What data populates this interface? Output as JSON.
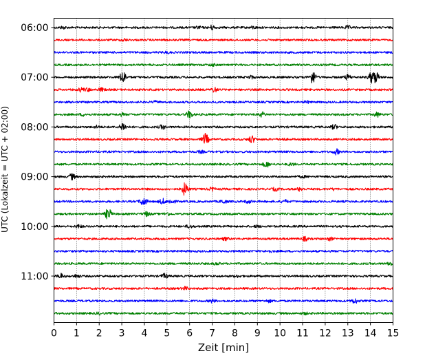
{
  "chart_data": {
    "type": "line",
    "title": "",
    "xlabel": "Zeit  [min]",
    "ylabel": "UTC (Lokalzeit = UTC + 02:00)",
    "xlim": [
      0,
      15
    ],
    "x_ticks": [
      "0",
      "1",
      "2",
      "3",
      "4",
      "5",
      "6",
      "7",
      "8",
      "9",
      "10",
      "11",
      "12",
      "13",
      "14",
      "15"
    ],
    "y_ticks": [
      "06:00",
      "07:00",
      "08:00",
      "09:00",
      "10:00",
      "11:00"
    ],
    "grid": "vertical dotted at each minute",
    "trace_colors": [
      "#000000",
      "#ff0000",
      "#0000ff",
      "#008000"
    ],
    "series": [
      {
        "start": "06:00",
        "events": [
          [
            0.4,
            1.5
          ],
          [
            6.4,
            1.5
          ],
          [
            7.0,
            3
          ],
          [
            8.8,
            1.5
          ],
          [
            13.0,
            2
          ]
        ]
      },
      {
        "start": "06:15",
        "events": [
          [
            3.1,
            1.5
          ]
        ]
      },
      {
        "start": "06:30",
        "events": [
          [
            5.0,
            1.2
          ]
        ]
      },
      {
        "start": "06:45",
        "events": [
          [
            7.0,
            1.5
          ]
        ]
      },
      {
        "start": "07:00",
        "events": [
          [
            3.05,
            9
          ],
          [
            8.7,
            2
          ],
          [
            11.45,
            9
          ],
          [
            13.0,
            3.5
          ],
          [
            14.05,
            7
          ],
          [
            14.25,
            7
          ]
        ]
      },
      {
        "start": "07:15",
        "events": [
          [
            1.2,
            2.5
          ],
          [
            1.5,
            2
          ],
          [
            2.1,
            2
          ],
          [
            7.1,
            3
          ]
        ]
      },
      {
        "start": "07:30",
        "events": [
          [
            4.5,
            1.2
          ],
          [
            11.2,
            1.2
          ]
        ]
      },
      {
        "start": "07:45",
        "events": [
          [
            1.3,
            1.5
          ],
          [
            3.0,
            1.5
          ],
          [
            6.0,
            5
          ],
          [
            9.2,
            3
          ],
          [
            14.3,
            3
          ]
        ]
      },
      {
        "start": "08:00",
        "events": [
          [
            1.9,
            1.5
          ],
          [
            3.05,
            6
          ],
          [
            4.8,
            2.5
          ],
          [
            12.4,
            3
          ]
        ]
      },
      {
        "start": "08:15",
        "events": [
          [
            6.7,
            8
          ],
          [
            8.75,
            5
          ],
          [
            10.1,
            1.5
          ]
        ]
      },
      {
        "start": "08:30",
        "events": [
          [
            6.5,
            1.5
          ],
          [
            12.5,
            3.5
          ]
        ]
      },
      {
        "start": "08:45",
        "events": [
          [
            9.4,
            4
          ],
          [
            10.5,
            1.5
          ]
        ]
      },
      {
        "start": "09:00",
        "events": [
          [
            0.8,
            4
          ],
          [
            11.0,
            1.2
          ]
        ]
      },
      {
        "start": "09:15",
        "events": [
          [
            5.8,
            9
          ],
          [
            7.0,
            2
          ],
          [
            9.8,
            2
          ],
          [
            10.9,
            2.5
          ],
          [
            12.4,
            1.2
          ]
        ]
      },
      {
        "start": "09:30",
        "events": [
          [
            3.9,
            3
          ],
          [
            4.0,
            3.5
          ],
          [
            4.8,
            3.5
          ],
          [
            5.2,
            3.5
          ],
          [
            7.5,
            2.5
          ],
          [
            8.6,
            2
          ],
          [
            10.2,
            2
          ]
        ]
      },
      {
        "start": "09:45",
        "events": [
          [
            2.4,
            8
          ],
          [
            4.1,
            3
          ],
          [
            5.0,
            2
          ]
        ]
      },
      {
        "start": "10:00",
        "events": [
          [
            1.1,
            2
          ],
          [
            6.0,
            2
          ],
          [
            9.0,
            1.2
          ]
        ]
      },
      {
        "start": "10:15",
        "events": [
          [
            7.6,
            2
          ],
          [
            11.1,
            2.5
          ],
          [
            12.2,
            2
          ]
        ]
      },
      {
        "start": "10:30",
        "events": [
          [
            9.5,
            1.2
          ]
        ]
      },
      {
        "start": "10:45",
        "events": [
          [
            7.2,
            1.5
          ],
          [
            14.9,
            2.5
          ]
        ]
      },
      {
        "start": "11:00",
        "events": [
          [
            0.3,
            3
          ],
          [
            1.0,
            2
          ],
          [
            4.9,
            3
          ],
          [
            8.1,
            1.2
          ]
        ]
      },
      {
        "start": "11:15",
        "events": [
          [
            5.8,
            2
          ]
        ]
      },
      {
        "start": "11:30",
        "events": [
          [
            7.0,
            2
          ],
          [
            9.5,
            1.5
          ],
          [
            13.3,
            3.5
          ]
        ]
      },
      {
        "start": "11:45",
        "events": [
          [
            2.0,
            1.2
          ],
          [
            11.1,
            1.2
          ]
        ]
      }
    ]
  }
}
